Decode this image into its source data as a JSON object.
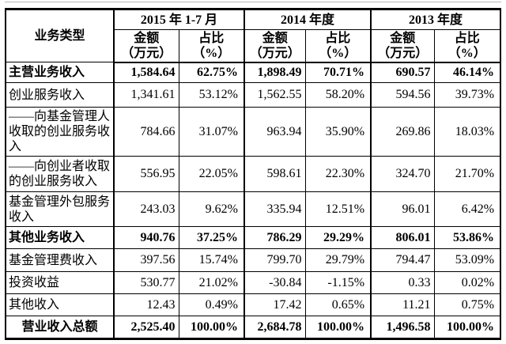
{
  "table": {
    "row_header_label": "业务类型",
    "groups": [
      {
        "period": "2015 年 1-7 月",
        "amount_label": "金额",
        "amount_unit": "（万元）",
        "pct_label": "占比",
        "pct_unit": "（%）"
      },
      {
        "period": "2014 年度",
        "amount_label": "金额",
        "amount_unit": "（万元）",
        "pct_label": "占比",
        "pct_unit": "（%）"
      },
      {
        "period": "2013 年度",
        "amount_label": "金额",
        "amount_unit": "（万元）",
        "pct_label": "占比",
        "pct_unit": "（%）"
      }
    ],
    "rows": [
      {
        "label": "主营业务收入",
        "bold": true,
        "cells": [
          "1,584.64",
          "62.75%",
          "1,898.49",
          "70.71%",
          "690.57",
          "46.14%"
        ]
      },
      {
        "label": "创业服务收入",
        "bold": false,
        "cells": [
          "1,341.61",
          "53.12%",
          "1,562.55",
          "58.20%",
          "594.56",
          "39.73%"
        ]
      },
      {
        "label": "——向基金管理人收取的创业服务收入",
        "bold": false,
        "cells": [
          "784.66",
          "31.07%",
          "963.94",
          "35.90%",
          "269.86",
          "18.03%"
        ]
      },
      {
        "label": "——向创业者收取的创业服务收入",
        "bold": false,
        "cells": [
          "556.95",
          "22.05%",
          "598.61",
          "22.30%",
          "324.70",
          "21.70%"
        ]
      },
      {
        "label": "基金管理外包服务收入",
        "bold": false,
        "cells": [
          "243.03",
          "9.62%",
          "335.94",
          "12.51%",
          "96.01",
          "6.42%"
        ]
      },
      {
        "label": "其他业务收入",
        "bold": true,
        "cells": [
          "940.76",
          "37.25%",
          "786.29",
          "29.29%",
          "806.01",
          "53.86%"
        ]
      },
      {
        "label": "基金管理费收入",
        "bold": false,
        "cells": [
          "397.56",
          "15.74%",
          "799.70",
          "29.79%",
          "794.47",
          "53.09%"
        ]
      },
      {
        "label": "投资收益",
        "bold": false,
        "cells": [
          "530.77",
          "21.02%",
          "-30.84",
          "-1.15%",
          "0.33",
          "0.02%"
        ]
      },
      {
        "label": "其他收入",
        "bold": false,
        "cells": [
          "12.43",
          "0.49%",
          "17.42",
          "0.65%",
          "11.21",
          "0.75%"
        ]
      },
      {
        "label": "营业收入总额",
        "bold": true,
        "center": true,
        "cells": [
          "2,525.40",
          "100.00%",
          "2,684.78",
          "100.00%",
          "1,496.58",
          "100.00%"
        ]
      }
    ]
  }
}
